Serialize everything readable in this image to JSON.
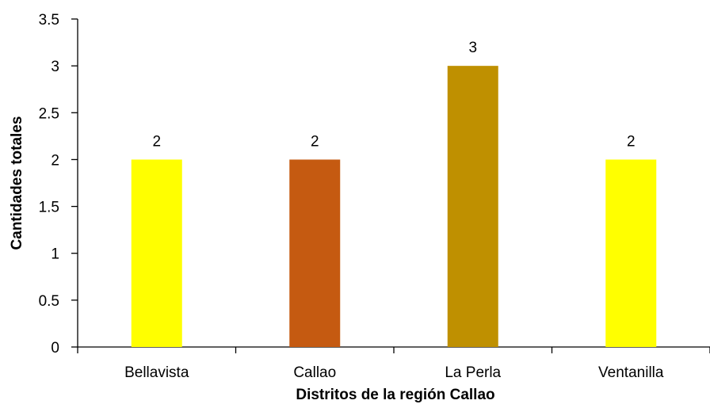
{
  "chart_data": {
    "type": "bar",
    "categories": [
      "Bellavista",
      "Callao",
      "La Perla",
      "Ventanilla"
    ],
    "values": [
      2,
      2,
      3,
      2
    ],
    "data_labels": [
      "2",
      "2",
      "3",
      "2"
    ],
    "bar_colors": [
      "#FFFF00",
      "#C55A11",
      "#BF9000",
      "#FFFF00"
    ],
    "xlabel": "Distritos de la región Callao",
    "ylabel": "Cantidades totales",
    "ylim": [
      0,
      3.5
    ],
    "yticks": [
      0,
      0.5,
      1,
      1.5,
      2,
      2.5,
      3,
      3.5
    ],
    "ytick_labels": [
      "0",
      "0.5",
      "1",
      "1.5",
      "2",
      "2.5",
      "3",
      "3.5"
    ],
    "grid": false,
    "legend": "none"
  }
}
